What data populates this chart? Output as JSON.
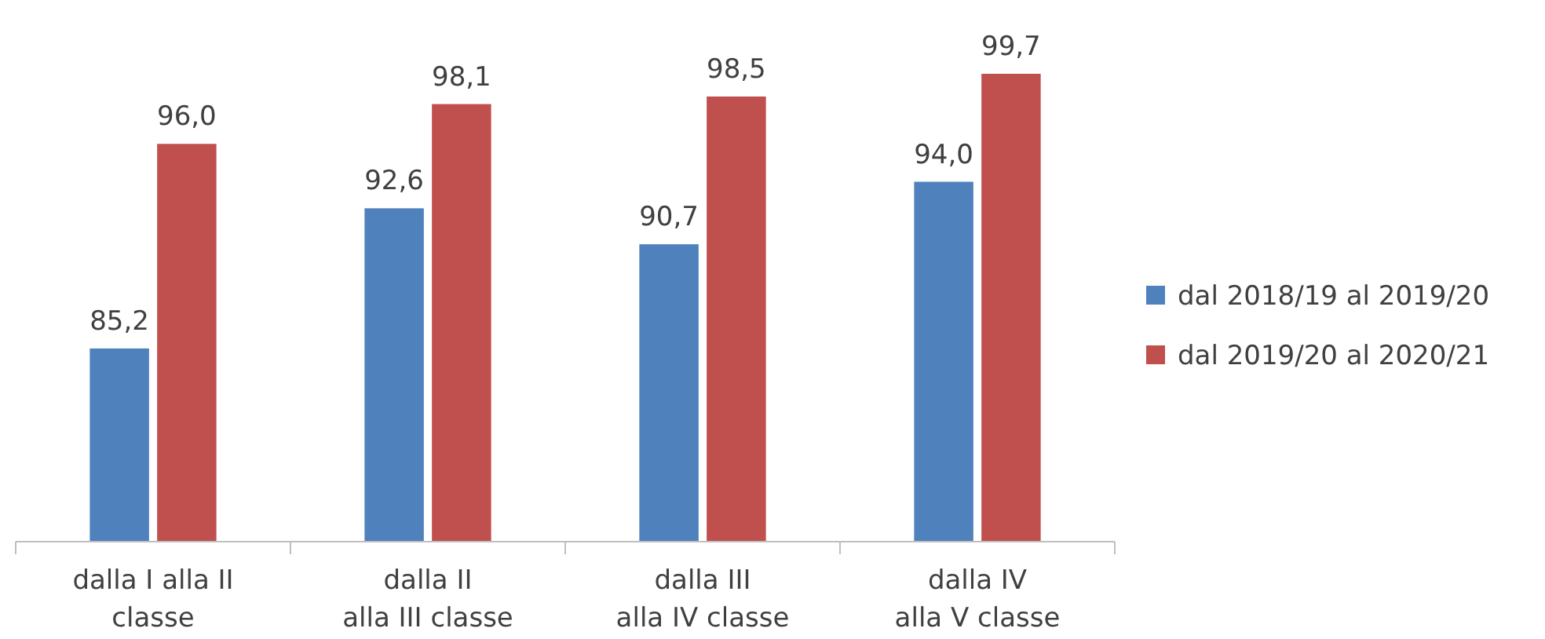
{
  "chart_data": {
    "type": "bar",
    "categories": [
      "dalla I alla II\nclasse",
      "dalla II\nalla III classe",
      "dalla III\nalla IV classe",
      "dalla IV\nalla V classe"
    ],
    "series": [
      {
        "name": "dal 2018/19 al 2019/20",
        "color": "#4f81bd",
        "values": [
          85.2,
          92.6,
          90.7,
          94.0
        ],
        "value_labels": [
          "85,2",
          "92,6",
          "90,7",
          "94,0"
        ]
      },
      {
        "name": "dal 2019/20 al 2020/21",
        "color": "#c0504d",
        "values": [
          96.0,
          98.1,
          98.5,
          99.7
        ],
        "value_labels": [
          "96,0",
          "98,1",
          "98,5",
          "99,7"
        ]
      }
    ],
    "ylim": [
      75,
      99.7
    ],
    "legend": "right",
    "grid": false
  }
}
